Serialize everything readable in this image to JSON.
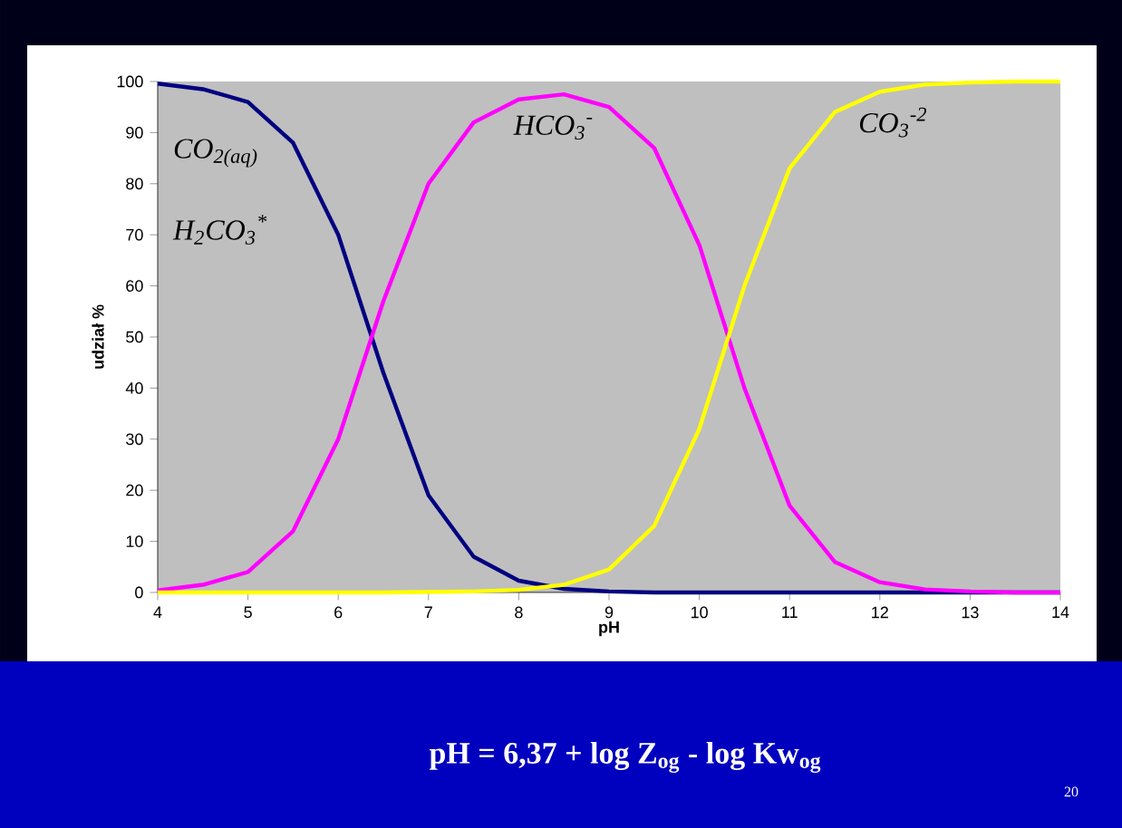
{
  "chart_data": {
    "type": "line",
    "xlabel": "pH",
    "ylabel": "udział %",
    "x": [
      4,
      4.5,
      5,
      5.5,
      6,
      6.5,
      7,
      7.5,
      8,
      8.5,
      9,
      9.5,
      10,
      10.5,
      11,
      11.5,
      12,
      12.5,
      13,
      13.5,
      14
    ],
    "series": [
      {
        "name": "CO$_{2(aq)}$",
        "color": "#000080",
        "values": [
          99.6,
          98.5,
          96,
          88,
          70,
          43,
          19,
          7,
          2.3,
          0.7,
          0.2,
          0,
          0,
          0,
          0,
          0,
          0,
          0,
          0,
          0,
          0
        ]
      },
      {
        "name": "HCO$_{3}$$^{-}$",
        "color": "#ff00ff",
        "values": [
          0.4,
          1.5,
          4,
          12,
          30,
          57,
          80,
          92,
          96.5,
          97.5,
          95,
          87,
          68,
          40,
          17,
          6,
          2,
          0.6,
          0.2,
          0,
          0
        ]
      },
      {
        "name": "CO$_{3}$$^{-2}$",
        "color": "#ffff00",
        "values": [
          0,
          0,
          0,
          0,
          0,
          0,
          0.1,
          0.2,
          0.5,
          1.5,
          4.5,
          13,
          32,
          60,
          83,
          94,
          98,
          99.4,
          99.8,
          100,
          100
        ]
      }
    ],
    "xlim": [
      4,
      14
    ],
    "ylim": [
      0,
      100
    ],
    "xticks": [
      4,
      5,
      6,
      7,
      8,
      9,
      10,
      11,
      12,
      13,
      14
    ],
    "yticks": [
      0,
      10,
      20,
      30,
      40,
      50,
      60,
      70,
      80,
      90,
      100
    ],
    "grid": false,
    "legend": false,
    "annotations": [
      "H$_{2}$CO$_{3}$$^{*}$",
      "pH = 6,37 + log Z$_{og}$ - log Kw$_{og}$",
      "20"
    ]
  }
}
